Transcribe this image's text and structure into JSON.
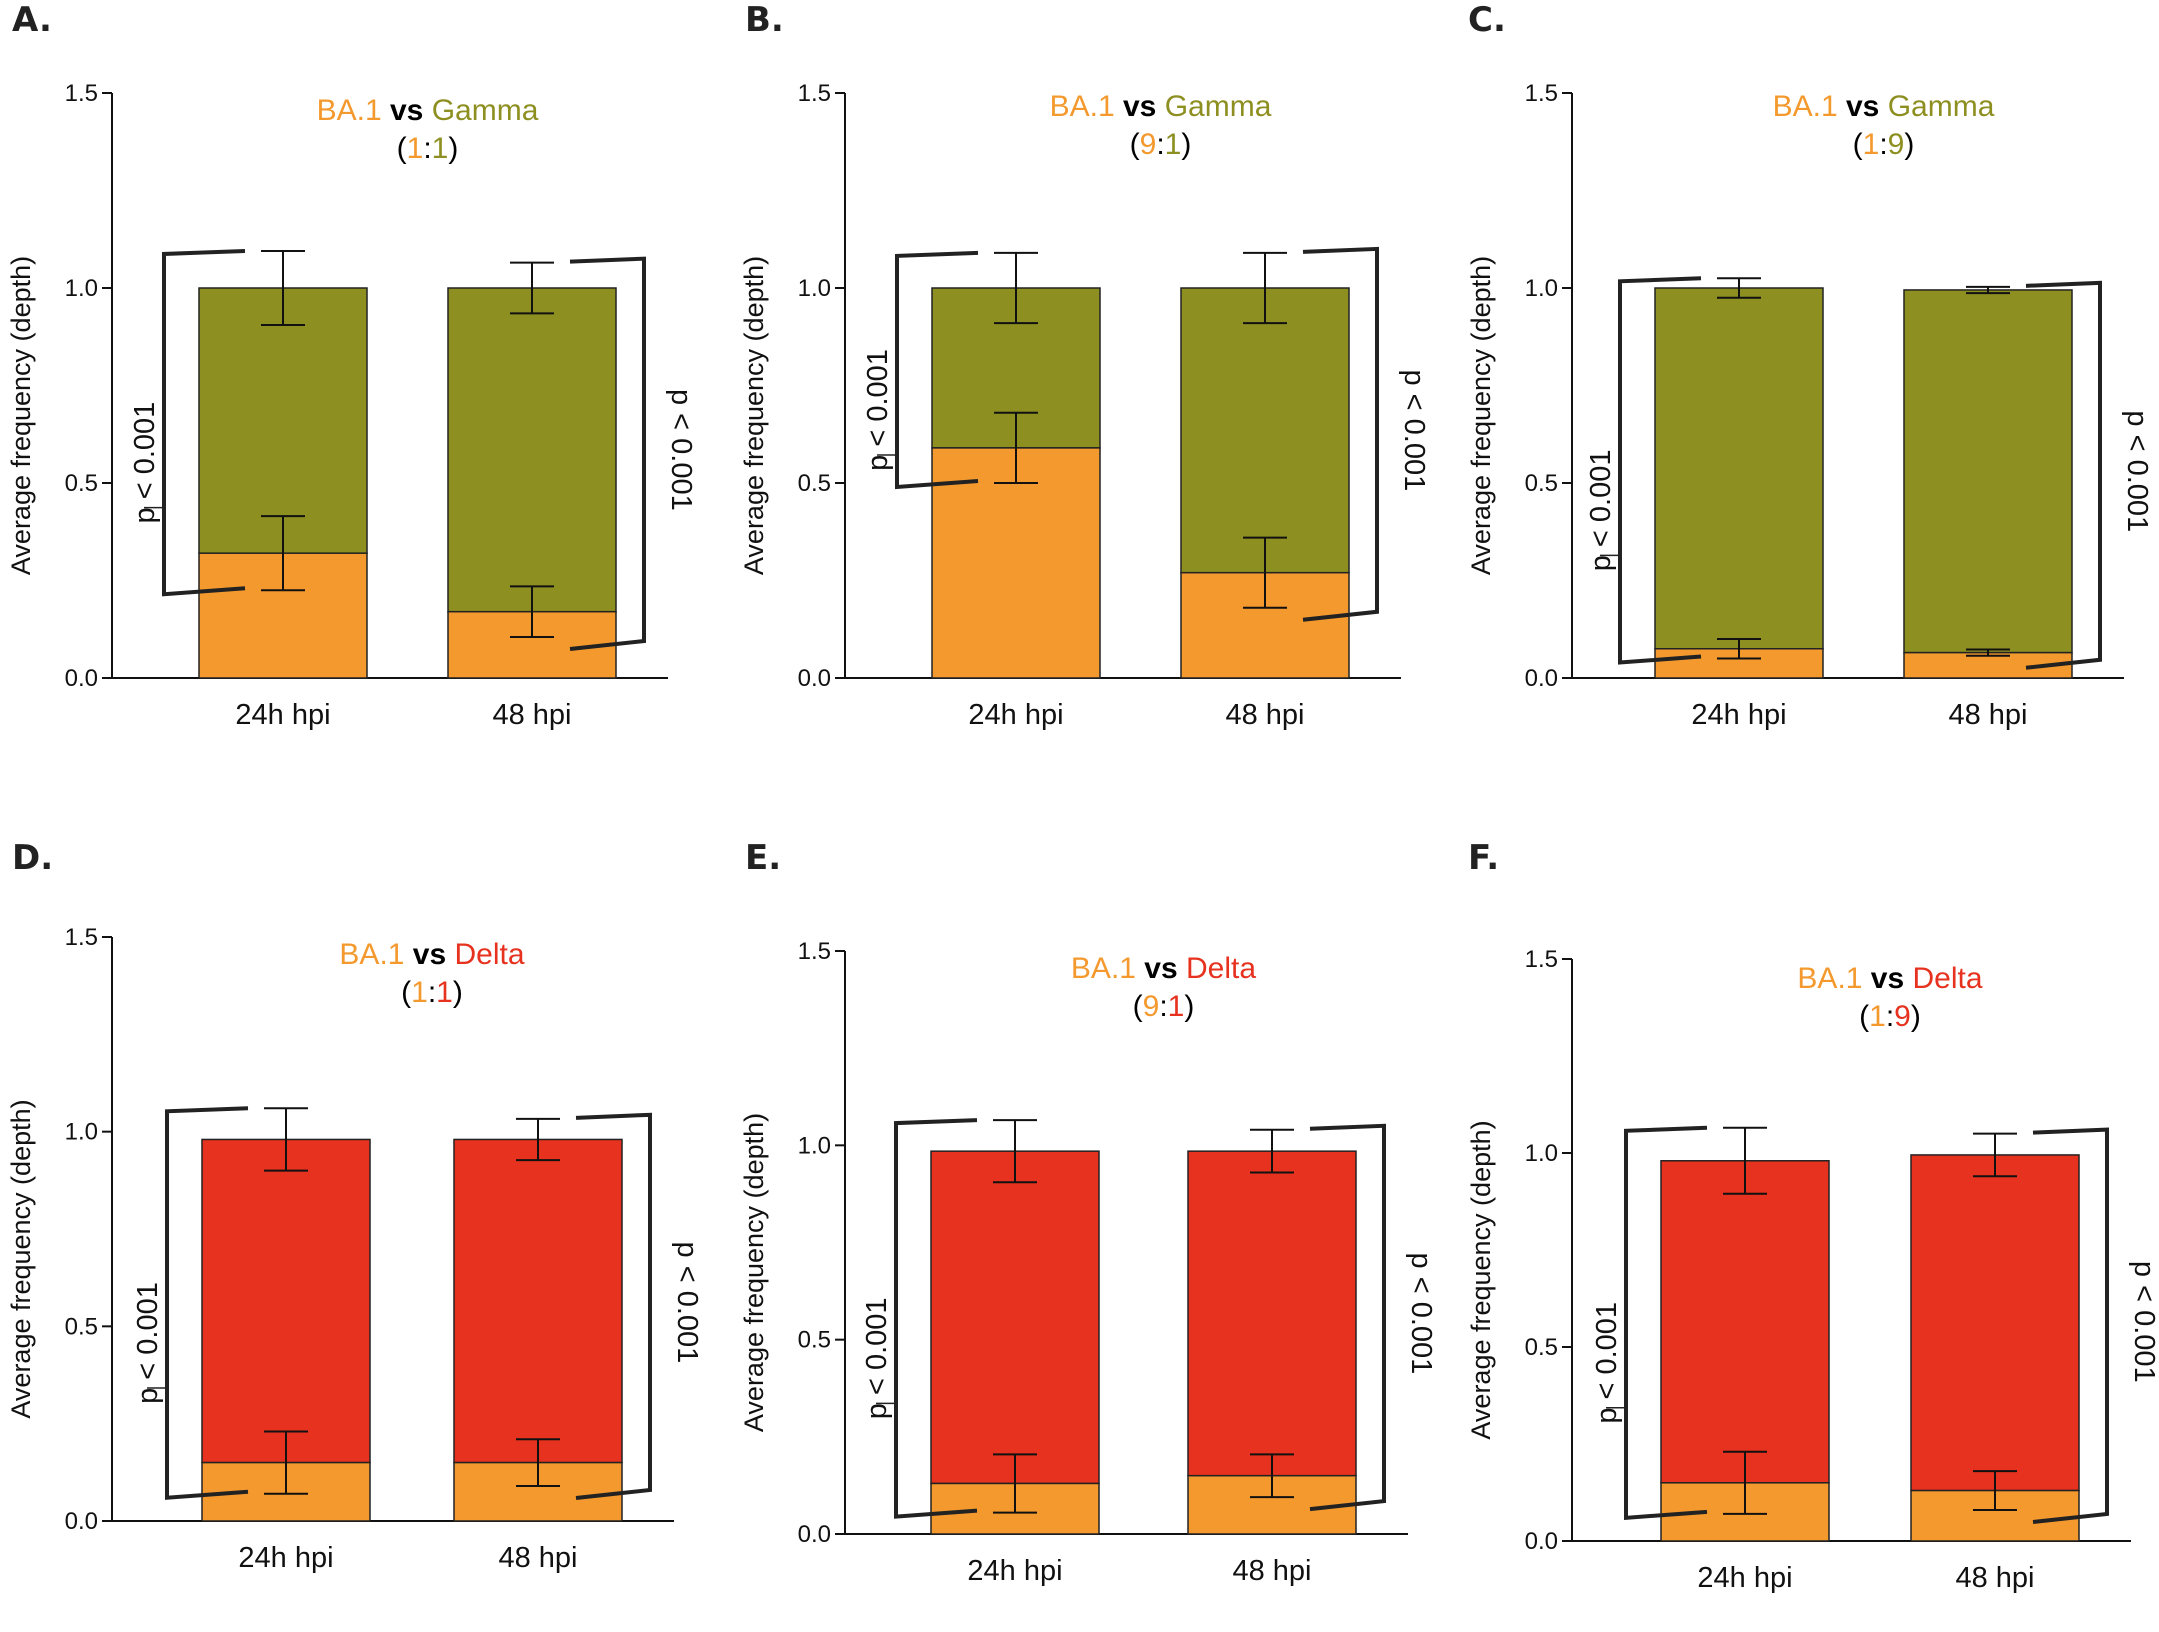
{
  "figure": {
    "colors": {
      "ba1": "#F4992E",
      "gamma": "#8E8F21",
      "delta": "#E6321E",
      "axis": "#111111",
      "text": "#111111"
    }
  },
  "chart_data": [
    {
      "panel": "A.",
      "type": "bar",
      "stacked": true,
      "title": {
        "left": "BA.1",
        "vs": "vs",
        "right": "Gamma",
        "ratio_left": "1",
        "ratio_sep": ":",
        "ratio_right": "1",
        "ratio_color": "mixed"
      },
      "variant": "gamma",
      "ylabel": "Average frequency (depth)",
      "ylim": [
        0,
        1.5
      ],
      "yticks": [
        "0.0",
        "0.5",
        "1.0",
        "1.5"
      ],
      "categories": [
        "24h hpi",
        "48 hpi"
      ],
      "series": [
        {
          "name": "BA.1",
          "values": [
            0.32,
            0.17
          ],
          "err": [
            0.095,
            0.065
          ]
        },
        {
          "name": "Gamma",
          "values": [
            0.68,
            0.83
          ],
          "err": [
            0.095,
            0.065
          ]
        }
      ],
      "annotations": {
        "left": "p < 0.001",
        "right": "p < 0.001"
      }
    },
    {
      "panel": "B.",
      "type": "bar",
      "stacked": true,
      "title": {
        "left": "BA.1",
        "vs": "vs",
        "right": "Gamma",
        "ratio_left": "9",
        "ratio_sep": ":",
        "ratio_right": "1",
        "ratio_color": "left"
      },
      "variant": "gamma",
      "ylabel": "Average frequency (depth)",
      "ylim": [
        0,
        1.5
      ],
      "yticks": [
        "0.0",
        "0.5",
        "1.0",
        "1.5"
      ],
      "categories": [
        "24h hpi",
        "48 hpi"
      ],
      "series": [
        {
          "name": "BA.1",
          "values": [
            0.59,
            0.27
          ],
          "err": [
            0.09,
            0.09
          ]
        },
        {
          "name": "Gamma",
          "values": [
            0.41,
            0.73
          ],
          "err": [
            0.09,
            0.09
          ]
        }
      ],
      "annotations": {
        "left": "p < 0.001",
        "right": "p < 0.001"
      }
    },
    {
      "panel": "C.",
      "type": "bar",
      "stacked": true,
      "title": {
        "left": "BA.1",
        "vs": "vs",
        "right": "Gamma",
        "ratio_left": "1",
        "ratio_sep": ":",
        "ratio_right": "9",
        "ratio_color": "right"
      },
      "variant": "gamma",
      "ylabel": "Average frequency (depth)",
      "ylim": [
        0,
        1.5
      ],
      "yticks": [
        "0.0",
        "0.5",
        "1.0",
        "1.5"
      ],
      "categories": [
        "24h hpi",
        "48 hpi"
      ],
      "series": [
        {
          "name": "BA.1",
          "values": [
            0.075,
            0.065
          ],
          "err": [
            0.025,
            0.008
          ]
        },
        {
          "name": "Gamma",
          "values": [
            0.925,
            0.93
          ],
          "err": [
            0.025,
            0.008
          ]
        }
      ],
      "annotations": {
        "left": "p < 0.001",
        "right": "p < 0.001"
      }
    },
    {
      "panel": "D.",
      "type": "bar",
      "stacked": true,
      "title": {
        "left": "BA.1",
        "vs": "vs",
        "right": "Delta",
        "ratio_left": "1",
        "ratio_sep": ":",
        "ratio_right": "1",
        "ratio_color": "mixed"
      },
      "variant": "delta",
      "ylabel": "Average frequency (depth)",
      "ylim": [
        0,
        1.5
      ],
      "yticks": [
        "0.0",
        "0.5",
        "1.0",
        "1.5"
      ],
      "categories": [
        "24h hpi",
        "48 hpi"
      ],
      "series": [
        {
          "name": "BA.1",
          "values": [
            0.15,
            0.15
          ],
          "err": [
            0.08,
            0.06
          ]
        },
        {
          "name": "Delta",
          "values": [
            0.83,
            0.83
          ],
          "err": [
            0.08,
            0.053
          ]
        }
      ],
      "annotations": {
        "left": "p < 0.001",
        "right": "p < 0.001"
      }
    },
    {
      "panel": "E.",
      "type": "bar",
      "stacked": true,
      "title": {
        "left": "BA.1",
        "vs": "vs",
        "right": "Delta",
        "ratio_left": "9",
        "ratio_sep": ":",
        "ratio_right": "1",
        "ratio_color": "left"
      },
      "variant": "delta",
      "ylabel": "Average frequency (depth)",
      "ylim": [
        0,
        1.5
      ],
      "yticks": [
        "0.0",
        "0.5",
        "1.0",
        "1.5"
      ],
      "categories": [
        "24h hpi",
        "48 hpi"
      ],
      "series": [
        {
          "name": "BA.1",
          "values": [
            0.13,
            0.15
          ],
          "err": [
            0.075,
            0.055
          ]
        },
        {
          "name": "Delta",
          "values": [
            0.855,
            0.835
          ],
          "err": [
            0.08,
            0.055
          ]
        }
      ],
      "annotations": {
        "left": "p < 0.001",
        "right": "p < 0.001"
      }
    },
    {
      "panel": "F.",
      "type": "bar",
      "stacked": true,
      "title": {
        "left": "BA.1",
        "vs": "vs",
        "right": "Delta",
        "ratio_left": "1",
        "ratio_sep": ":",
        "ratio_right": "9",
        "ratio_color": "right"
      },
      "variant": "delta",
      "ylabel": "Average frequency (depth)",
      "ylim": [
        0,
        1.5
      ],
      "yticks": [
        "0.0",
        "0.5",
        "1.0",
        "1.5"
      ],
      "categories": [
        "24h hpi",
        "48 hpi"
      ],
      "series": [
        {
          "name": "BA.1",
          "values": [
            0.15,
            0.13
          ],
          "err": [
            0.08,
            0.05
          ]
        },
        {
          "name": "Delta",
          "values": [
            0.83,
            0.865
          ],
          "err": [
            0.085,
            0.055
          ]
        }
      ],
      "annotations": {
        "left": "p < 0.001",
        "right": "p < 0.001"
      }
    }
  ]
}
